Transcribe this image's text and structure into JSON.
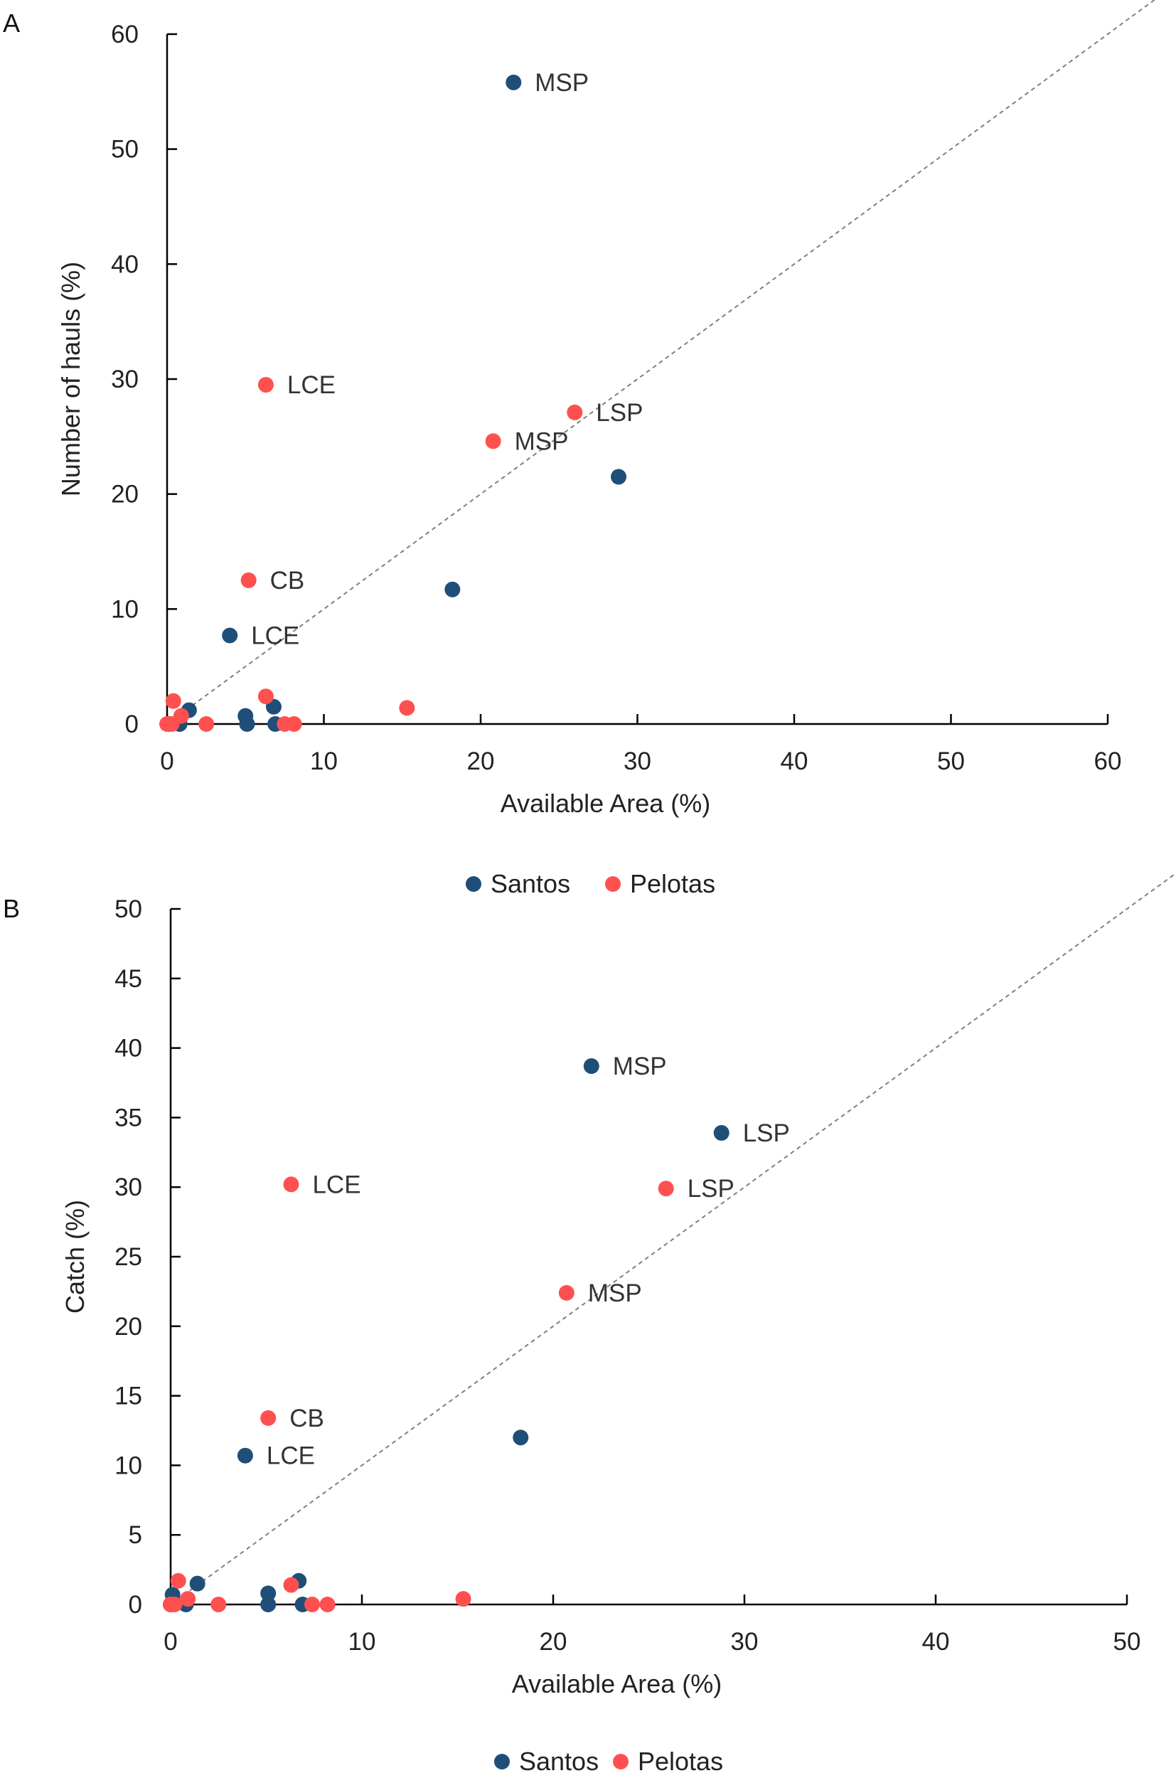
{
  "colors": {
    "Santos": "#1f4e79",
    "Pelotas": "#ff5050",
    "diagonal": "#808080"
  },
  "chart_data": [
    {
      "type": "scatter",
      "panel_label": "A",
      "xlabel": "Available Area (%)",
      "ylabel": "Number of hauls (%)",
      "xlim": [
        0,
        60
      ],
      "ylim": [
        0,
        60
      ],
      "xticks": [
        0,
        10,
        20,
        30,
        40,
        50,
        60
      ],
      "yticks": [
        0,
        10,
        20,
        30,
        40,
        50,
        60
      ],
      "grid": false,
      "reference_line": "y = x (dashed)",
      "legend": {
        "placement": "bottom",
        "entries": [
          "Santos",
          "Pelotas"
        ]
      },
      "series": [
        {
          "name": "Santos",
          "points": [
            {
              "x": 22.1,
              "y": 55.8,
              "label": "MSP"
            },
            {
              "x": 28.8,
              "y": 21.5
            },
            {
              "x": 18.2,
              "y": 11.7
            },
            {
              "x": 4.0,
              "y": 7.7,
              "label": "LCE"
            },
            {
              "x": 1.4,
              "y": 1.2
            },
            {
              "x": 5.0,
              "y": 0.7
            },
            {
              "x": 5.1,
              "y": 0
            },
            {
              "x": 6.8,
              "y": 1.5
            },
            {
              "x": 6.9,
              "y": 0
            },
            {
              "x": 0.8,
              "y": 0
            },
            {
              "x": 0.1,
              "y": 0
            }
          ]
        },
        {
          "name": "Pelotas",
          "points": [
            {
              "x": 6.3,
              "y": 29.5,
              "label": "LCE"
            },
            {
              "x": 26.0,
              "y": 27.1,
              "label": "LSP"
            },
            {
              "x": 20.8,
              "y": 24.6,
              "label": "MSP"
            },
            {
              "x": 5.2,
              "y": 12.5,
              "label": "CB"
            },
            {
              "x": 0.4,
              "y": 2.0
            },
            {
              "x": 0.9,
              "y": 0.7
            },
            {
              "x": 0.0,
              "y": 0
            },
            {
              "x": 0.3,
              "y": 0
            },
            {
              "x": 2.5,
              "y": 0
            },
            {
              "x": 6.3,
              "y": 2.4
            },
            {
              "x": 7.5,
              "y": 0
            },
            {
              "x": 8.1,
              "y": 0
            },
            {
              "x": 15.3,
              "y": 1.4
            }
          ]
        }
      ]
    },
    {
      "type": "scatter",
      "panel_label": "B",
      "xlabel": "Available Area (%)",
      "ylabel": "Catch (%)",
      "xlim": [
        0,
        50
      ],
      "ylim": [
        0,
        50
      ],
      "xticks": [
        0,
        10,
        20,
        30,
        40,
        50
      ],
      "yticks": [
        0,
        5,
        10,
        15,
        20,
        25,
        30,
        35,
        40,
        45,
        50
      ],
      "grid": false,
      "reference_line": "y = x (dashed)",
      "legend": {
        "placement": "bottom",
        "entries": [
          "Santos",
          "Pelotas"
        ]
      },
      "series": [
        {
          "name": "Santos",
          "points": [
            {
              "x": 22.0,
              "y": 38.7,
              "label": "MSP"
            },
            {
              "x": 28.8,
              "y": 33.9,
              "label": "LSP"
            },
            {
              "x": 3.9,
              "y": 10.7,
              "label": "LCE"
            },
            {
              "x": 18.3,
              "y": 12.0
            },
            {
              "x": 1.4,
              "y": 1.5
            },
            {
              "x": 0.1,
              "y": 0.7
            },
            {
              "x": 0.8,
              "y": 0
            },
            {
              "x": 5.1,
              "y": 0.8
            },
            {
              "x": 5.1,
              "y": 0
            },
            {
              "x": 6.7,
              "y": 1.7
            },
            {
              "x": 6.9,
              "y": 0
            },
            {
              "x": 0.0,
              "y": 0
            }
          ]
        },
        {
          "name": "Pelotas",
          "points": [
            {
              "x": 6.3,
              "y": 30.2,
              "label": "LCE"
            },
            {
              "x": 25.9,
              "y": 29.9,
              "label": "LSP"
            },
            {
              "x": 20.7,
              "y": 22.4,
              "label": "MSP"
            },
            {
              "x": 5.1,
              "y": 13.4,
              "label": "CB"
            },
            {
              "x": 0.4,
              "y": 1.7
            },
            {
              "x": 0.9,
              "y": 0.4
            },
            {
              "x": 0.0,
              "y": 0
            },
            {
              "x": 0.2,
              "y": 0
            },
            {
              "x": 2.5,
              "y": 0
            },
            {
              "x": 6.3,
              "y": 1.4
            },
            {
              "x": 7.4,
              "y": 0
            },
            {
              "x": 8.2,
              "y": 0
            },
            {
              "x": 15.3,
              "y": 0.4
            }
          ]
        }
      ]
    }
  ]
}
